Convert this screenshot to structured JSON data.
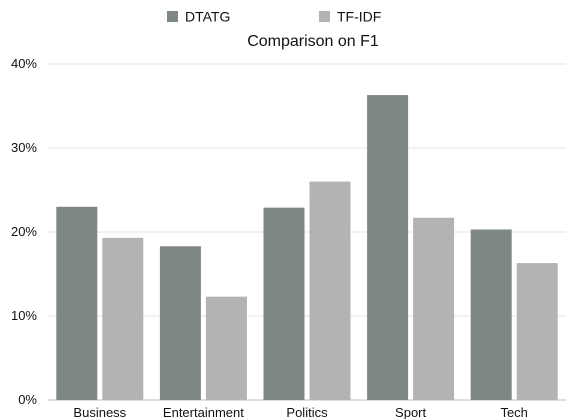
{
  "chart_data": {
    "type": "bar",
    "title": "Comparison on F1",
    "categories": [
      "Business",
      "Entertainment",
      "Politics",
      "Sport",
      "Tech"
    ],
    "series": [
      {
        "name": "DTATG",
        "values": [
          23.0,
          18.3,
          22.9,
          36.3,
          20.3
        ],
        "color": "#7f8782"
      },
      {
        "name": "TF-IDF",
        "values": [
          19.3,
          12.3,
          26.0,
          21.7,
          16.3
        ],
        "color": "#b3b3b3"
      }
    ],
    "ylim": [
      0,
      40
    ],
    "yticks": [
      0,
      10,
      20,
      30,
      40
    ],
    "ytick_labels": [
      "0%",
      "10%",
      "20%",
      "30%",
      "40%"
    ],
    "grid": true,
    "legend_position": "top-center",
    "xlabel": "",
    "ylabel": ""
  }
}
